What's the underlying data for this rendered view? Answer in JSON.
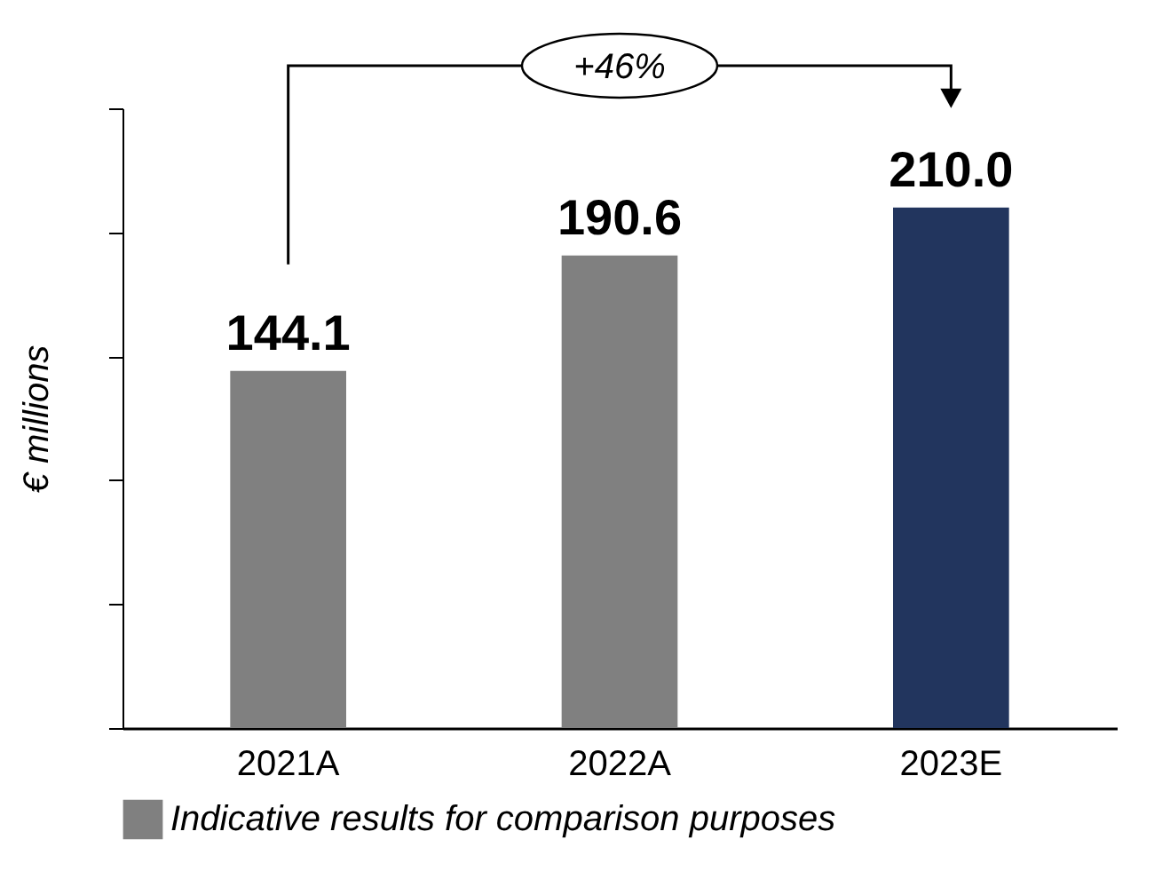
{
  "chart_data": {
    "type": "bar",
    "ylabel": "€ millions",
    "categories": [
      "2021A",
      "2022A",
      "2023E"
    ],
    "series": [
      {
        "name": "Indicative results for comparison purposes",
        "color": "#808080",
        "values": [
          144.1,
          190.6,
          null
        ],
        "value_labels": [
          "144.1",
          "190.6",
          null
        ]
      },
      {
        "color": "#22355e",
        "values": [
          null,
          null,
          210.0
        ],
        "value_labels": [
          null,
          null,
          "210.0"
        ]
      }
    ],
    "ylim": [
      0,
      250
    ],
    "yticks": [
      {
        "value": 0,
        "label": null
      },
      {
        "value": 50,
        "label": null
      },
      {
        "value": 100,
        "label": null
      },
      {
        "value": 150,
        "label": null
      },
      {
        "value": 200,
        "label": null
      },
      {
        "value": 250,
        "label": null
      }
    ],
    "tick_labels": "x",
    "legend": "bottom",
    "grid": false,
    "annotations": [
      "+46%"
    ]
  }
}
